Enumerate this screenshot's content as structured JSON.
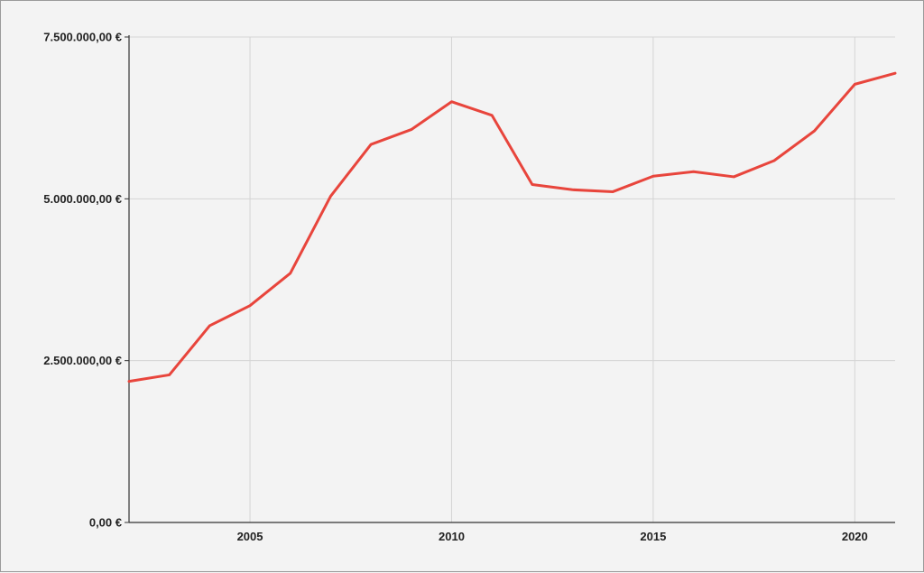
{
  "chart_data": {
    "type": "line",
    "title": "",
    "xlabel": "",
    "ylabel": "",
    "x": [
      2002,
      2003,
      2004,
      2005,
      2006,
      2007,
      2008,
      2009,
      2010,
      2011,
      2012,
      2013,
      2014,
      2015,
      2016,
      2017,
      2018,
      2019,
      2020,
      2021
    ],
    "series": [
      {
        "color": "#e8453c",
        "values": [
          2180000,
          2280000,
          3040000,
          3350000,
          3850000,
          5040000,
          5840000,
          6070000,
          6500000,
          6290000,
          5220000,
          5140000,
          5110000,
          5350000,
          5420000,
          5340000,
          5590000,
          6050000,
          6770000,
          6940000
        ]
      }
    ],
    "xlim": [
      2002,
      2021
    ],
    "ylim": [
      0,
      7500000
    ],
    "x_ticks": [
      {
        "value": 2005,
        "label": "2005"
      },
      {
        "value": 2010,
        "label": "2010"
      },
      {
        "value": 2015,
        "label": "2015"
      },
      {
        "value": 2020,
        "label": "2020"
      }
    ],
    "y_ticks": [
      {
        "value": 0,
        "label": "0,00 €"
      },
      {
        "value": 2500000,
        "label": "2.500.000,00 €"
      },
      {
        "value": 5000000,
        "label": "5.000.000,00 €"
      },
      {
        "value": 7500000,
        "label": "7.500.000,00 €"
      }
    ],
    "grid": true,
    "legend": "none",
    "colors": {
      "background": "#f3f3f3",
      "grid": "#d4d4d4",
      "axis": "#333333",
      "line": "#e8453c"
    }
  }
}
